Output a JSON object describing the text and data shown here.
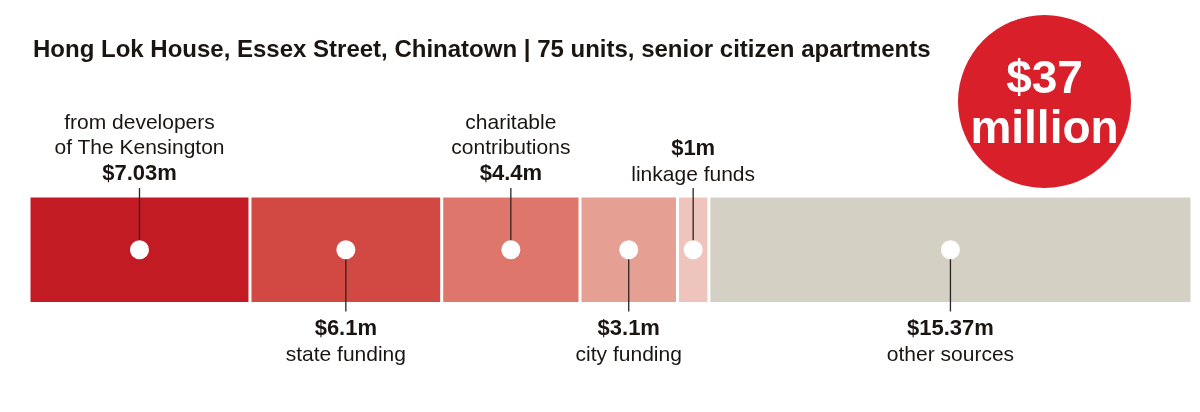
{
  "chart_data": {
    "type": "bar",
    "orientation": "horizontal",
    "stacked": true,
    "title": "Hong Lok House, Essex Street, Chinatown | 75 units, senior citizen apartments",
    "categories": [
      null
    ],
    "series": [
      {
        "name": "from developers of The Kensington",
        "color": "#c31b24",
        "values": [
          7.03
        ],
        "value_labels": [
          "$7.03m"
        ]
      },
      {
        "name": "state funding",
        "color": "#d24944",
        "values": [
          6.1
        ],
        "value_labels": [
          "$6.1m"
        ]
      },
      {
        "name": "charitable contributions",
        "color": "#df766b",
        "values": [
          4.4
        ],
        "value_labels": [
          "$4.4m"
        ]
      },
      {
        "name": "city funding",
        "color": "#e59f93",
        "values": [
          3.1
        ],
        "value_labels": [
          "$3.1m"
        ]
      },
      {
        "name": "linkage funds",
        "color": "#efc4bd",
        "values": [
          1
        ],
        "value_labels": [
          "$1m"
        ]
      },
      {
        "name": "other sources",
        "color": "#d4d0c3",
        "values": [
          15.37
        ],
        "value_labels": [
          "$15.37m"
        ]
      }
    ],
    "xlim": [
      0,
      37
    ],
    "tick_labels": false,
    "totals": [
      "$37 million"
    ]
  }
}
